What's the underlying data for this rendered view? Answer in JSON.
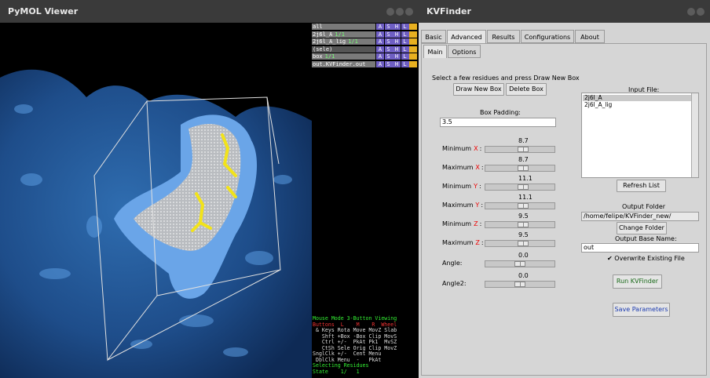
{
  "pymol": {
    "title": "PyMOL Viewer",
    "objects": [
      {
        "name": "all",
        "tag": "",
        "selected": false
      },
      {
        "name": "2j6l_A",
        "tag": "1/1",
        "selected": false
      },
      {
        "name": "2j6l_A_lig",
        "tag": "1/1",
        "selected": false
      },
      {
        "name": "(sele)",
        "tag": "",
        "selected": true
      },
      {
        "name": "box",
        "tag": "1/1",
        "selected": false
      },
      {
        "name": "out.KVFinder.out",
        "tag": "",
        "selected": false
      }
    ],
    "object_buttons": [
      "A",
      "S",
      "H",
      "L"
    ],
    "mouse_lines": [
      {
        "text": "Mouse Mode 3-Button Viewing",
        "color": "#33ee33"
      },
      {
        "text": "Buttons  L    M    R  Wheel",
        "color": "#ee3333"
      },
      {
        "text": " & Keys Rota Move MovZ Slab",
        "color": "#dddddd"
      },
      {
        "text": "   Shft +Box -Box Clip MovS",
        "color": "#dddddd"
      },
      {
        "text": "   Ctrl +/-  PkAt Pk1  MvSZ",
        "color": "#dddddd"
      },
      {
        "text": "   CtSh Sele Orig Clip MovZ",
        "color": "#dddddd"
      },
      {
        "text": "SnglClk +/-  Cent Menu",
        "color": "#dddddd"
      },
      {
        "text": " DblClk Menu  -   PkAt",
        "color": "#dddddd"
      },
      {
        "text": "Selecting Residues",
        "color": "#33ee33"
      },
      {
        "text": "State    1/   1",
        "color": "#33ee33"
      }
    ]
  },
  "kv": {
    "title": "KVFinder",
    "tabs": [
      "Basic",
      "Advanced",
      "Results",
      "Configurations",
      "About"
    ],
    "subtabs": [
      "Main",
      "Options"
    ],
    "instruction": "Select a few residues and press Draw New Box",
    "draw_box": "Draw New Box",
    "delete_box": "Delete Box",
    "box_padding_label": "Box Padding:",
    "box_padding_value": "3.5",
    "sliders": [
      {
        "label": "Minimum",
        "axis": "X",
        "colon": ":",
        "value": "8.7",
        "level": 0.55
      },
      {
        "label": "Maximum",
        "axis": "X",
        "colon": ":",
        "value": "8.7",
        "level": 0.55
      },
      {
        "label": "Minimum",
        "axis": "Y",
        "colon": ":",
        "value": "11.1",
        "level": 0.55
      },
      {
        "label": "Maximum",
        "axis": "Y",
        "colon": ":",
        "value": "11.1",
        "level": 0.55
      },
      {
        "label": "Minimum",
        "axis": "Z",
        "colon": ":",
        "value": "9.5",
        "level": 0.55
      },
      {
        "label": "Maximum",
        "axis": "Z",
        "colon": ":",
        "value": "9.5",
        "level": 0.55
      },
      {
        "label": "Angle:",
        "axis": "",
        "colon": "",
        "value": "0.0",
        "level": 0.5
      },
      {
        "label": "Angle2:",
        "axis": "",
        "colon": "",
        "value": "0.0",
        "level": 0.5
      }
    ],
    "input_file_label": "Input File:",
    "input_files": [
      "2j6l_A",
      "2j6l_A_lig"
    ],
    "refresh_list": "Refresh List",
    "output_folder_label": "Output Folder",
    "output_folder_value": "/home/felipe/KVFinder_new/",
    "change_folder": "Change Folder",
    "output_base_label": "Output Base Name:",
    "output_base_value": "out",
    "overwrite_label": "Overwrite Existing File",
    "run": "Run KVFinder",
    "save_params": "Save Parameters",
    "colors": {
      "axis_red": "#e00000",
      "run_text": "#1a6a1a",
      "save_text": "#1a3ab0"
    }
  }
}
